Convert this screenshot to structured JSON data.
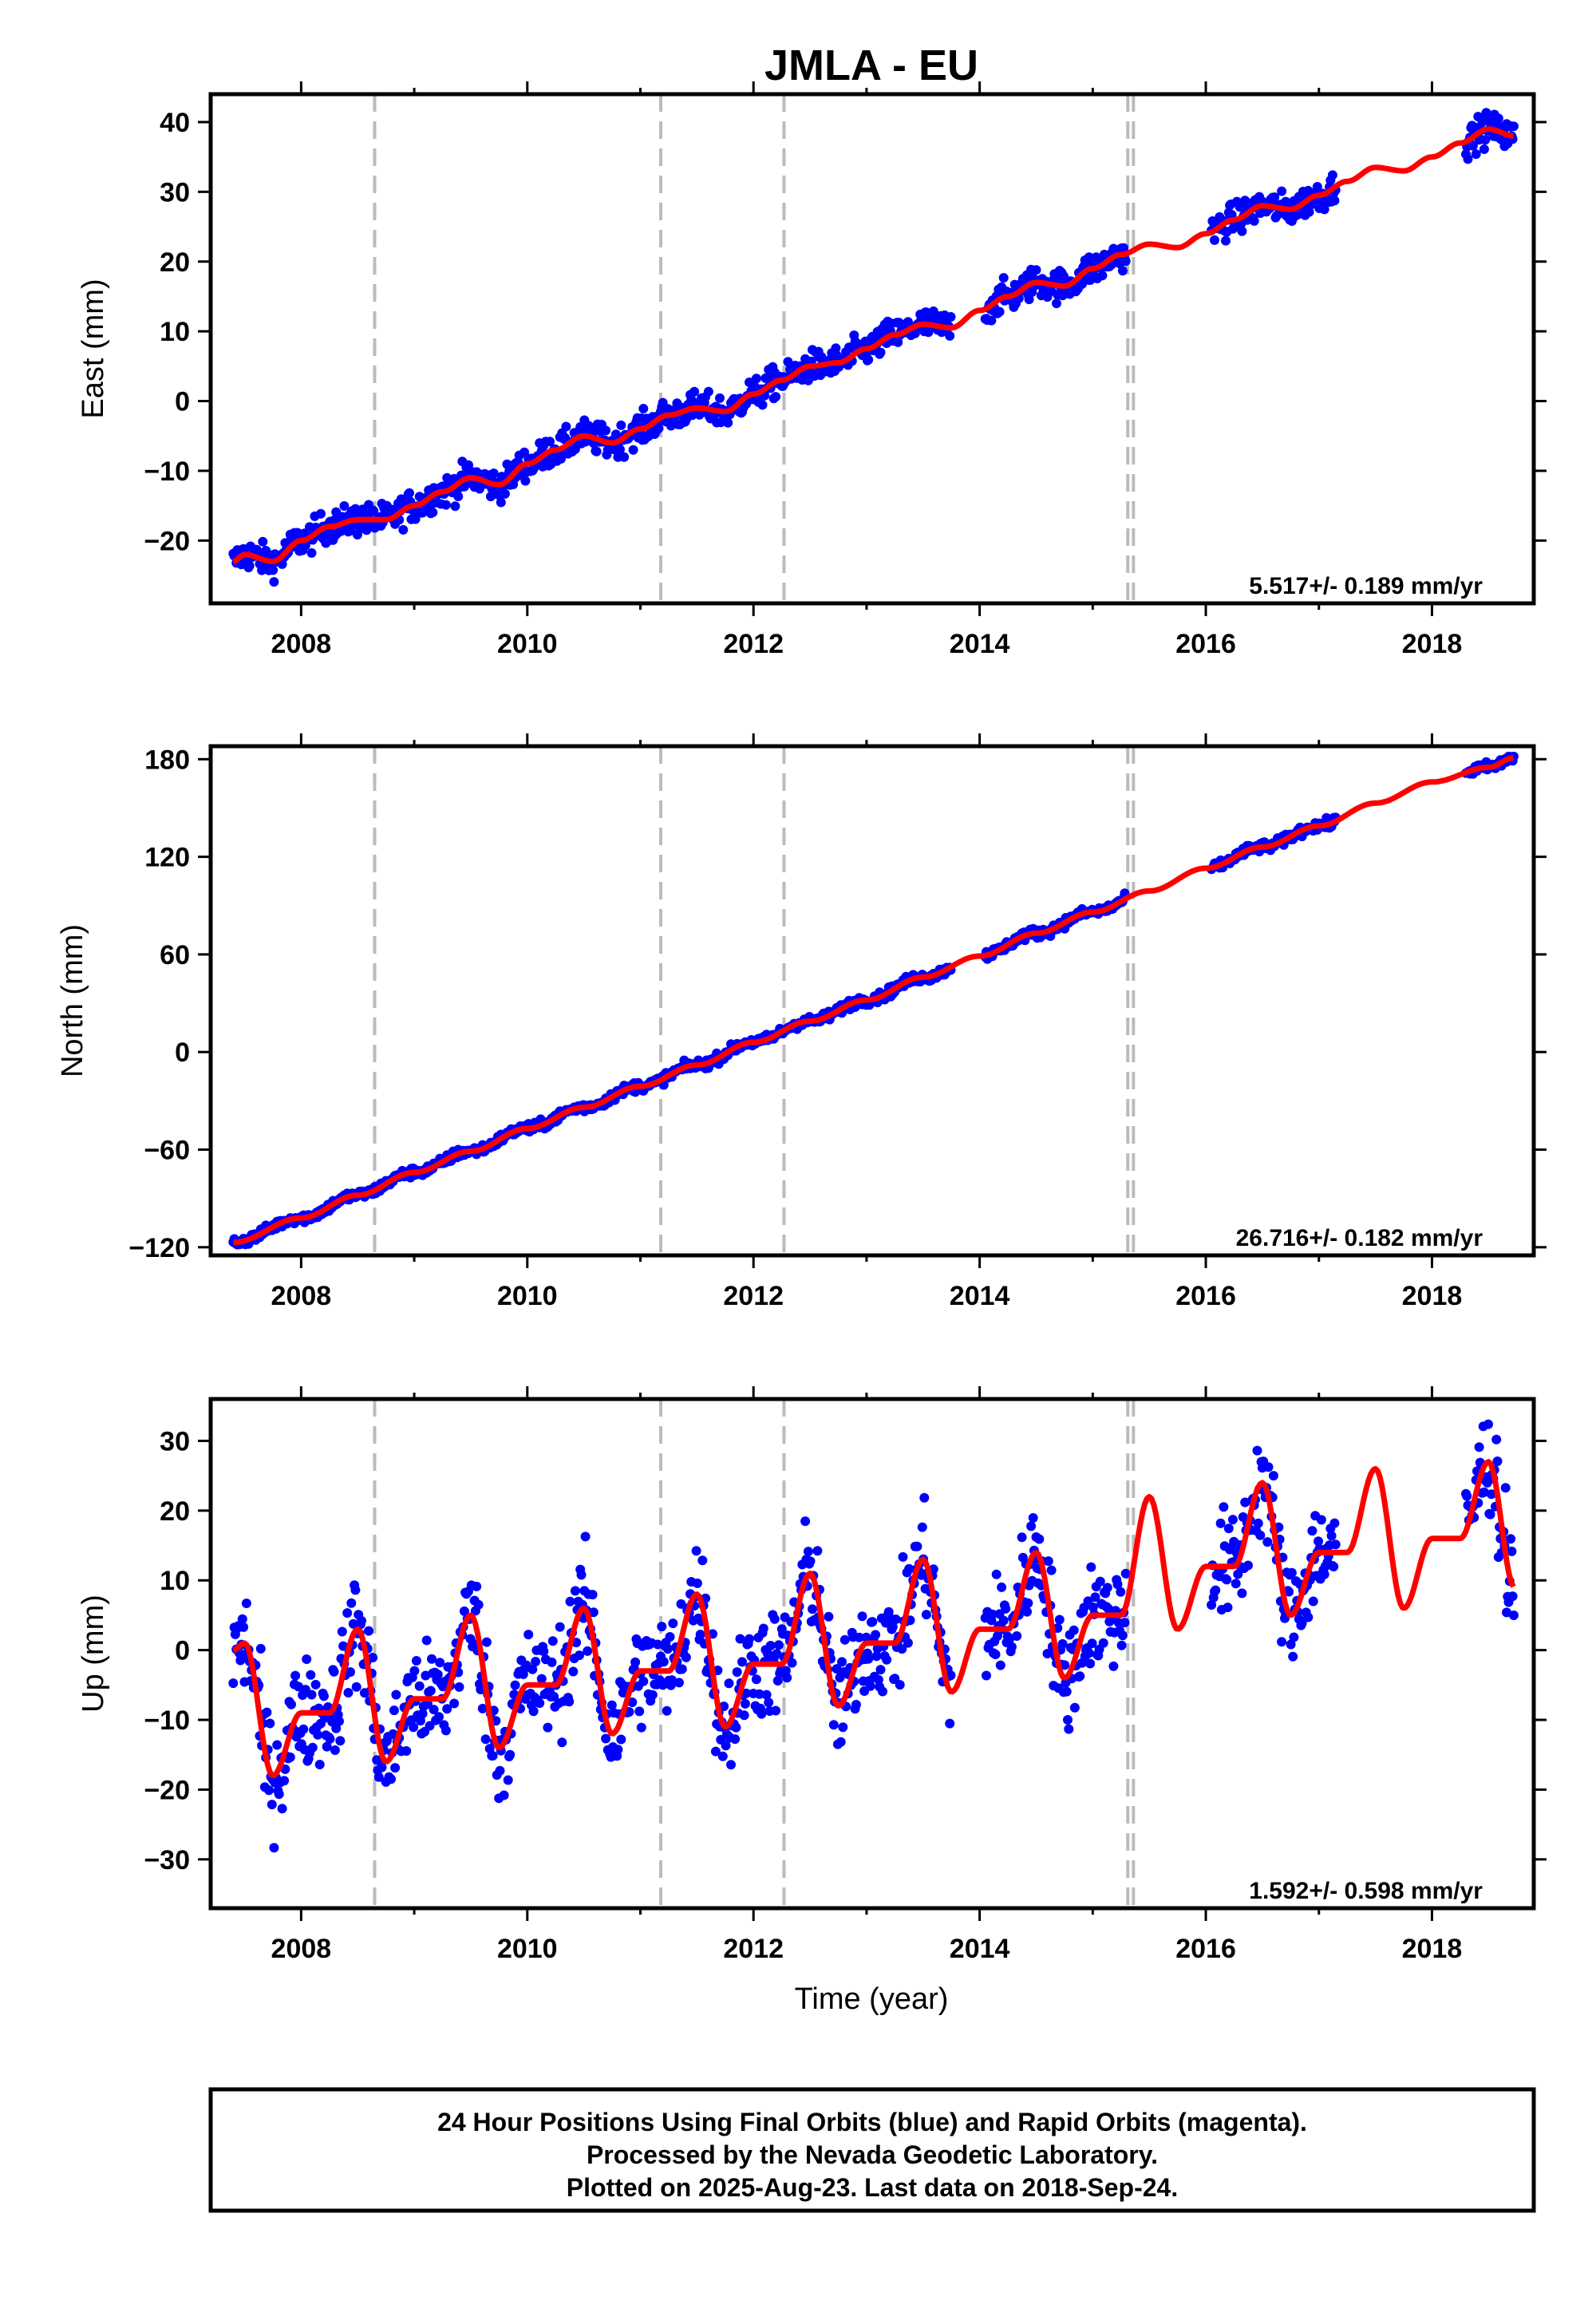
{
  "title": "JMLA - EU",
  "xlabel": "Time (year)",
  "xticks": [
    2008,
    2010,
    2012,
    2014,
    2016,
    2018
  ],
  "vlines": [
    2008.65,
    2011.18,
    2012.27,
    2015.31,
    2015.36
  ],
  "footer": {
    "line1": "24 Hour Positions Using Final Orbits (blue) and Rapid Orbits (magenta).",
    "line2": "Processed by the Nevada Geodetic Laboratory.",
    "line3": "Plotted on 2025-Aug-23. Last data on 2018-Sep-24."
  },
  "colors": {
    "points": "#0000ff",
    "model": "#ff0000",
    "breaks": "#bbbbbb"
  },
  "chart_data": [
    {
      "type": "scatter",
      "ylabel": "East (mm)",
      "rate": "5.517+/- 0.189 mm/yr",
      "xlim": [
        2007.2,
        2018.9
      ],
      "ylim": [
        -29,
        44
      ],
      "yticks": [
        -20,
        -10,
        0,
        10,
        20,
        30,
        40
      ],
      "observed_segments": [
        [
          2007.4,
          2013.75
        ],
        [
          2014.05,
          2015.3
        ],
        [
          2016.05,
          2017.15
        ],
        [
          2018.3,
          2018.73
        ]
      ],
      "model": {
        "x": [
          2007.4,
          2007.5,
          2007.75,
          2008.0,
          2008.25,
          2008.5,
          2008.75,
          2009.0,
          2009.25,
          2009.5,
          2009.75,
          2010.0,
          2010.25,
          2010.5,
          2010.75,
          2011.0,
          2011.25,
          2011.5,
          2011.75,
          2012.0,
          2012.25,
          2012.5,
          2012.75,
          2013.0,
          2013.25,
          2013.5,
          2013.75,
          2014.0,
          2014.25,
          2014.5,
          2014.75,
          2015.0,
          2015.25,
          2015.5,
          2015.75,
          2016.0,
          2016.25,
          2016.5,
          2016.75,
          2017.0,
          2017.25,
          2017.5,
          2017.75,
          2018.0,
          2018.25,
          2018.5,
          2018.73
        ],
        "y": [
          -23,
          -22,
          -23,
          -20,
          -18,
          -17,
          -17,
          -15,
          -13,
          -11,
          -12,
          -9,
          -7,
          -5,
          -6,
          -4,
          -2,
          -1,
          -1.5,
          1,
          3,
          5,
          5.5,
          7.5,
          9.5,
          11,
          10.5,
          13,
          15,
          17,
          16.5,
          19,
          21,
          22.5,
          22,
          24,
          26,
          28,
          27.5,
          29.5,
          31.5,
          33.5,
          33,
          35,
          37,
          39,
          38
        ]
      },
      "scatter_amp": 1.6
    },
    {
      "type": "scatter",
      "ylabel": "North (mm)",
      "rate": "26.716+/- 0.182 mm/yr",
      "xlim": [
        2007.2,
        2018.9
      ],
      "ylim": [
        -125,
        188
      ],
      "yticks": [
        -120,
        -60,
        0,
        60,
        120,
        180
      ],
      "observed_segments": [
        [
          2007.4,
          2013.75
        ],
        [
          2014.05,
          2015.3
        ],
        [
          2016.05,
          2017.15
        ],
        [
          2018.3,
          2018.73
        ]
      ],
      "model": {
        "x": [
          2007.4,
          2008.0,
          2008.5,
          2009.0,
          2009.5,
          2010.0,
          2010.5,
          2011.0,
          2011.5,
          2012.0,
          2012.5,
          2013.0,
          2013.5,
          2014.0,
          2014.5,
          2015.0,
          2015.5,
          2016.0,
          2016.5,
          2017.0,
          2017.5,
          2018.0,
          2018.5,
          2018.73
        ],
        "y": [
          -117,
          -102,
          -88,
          -74,
          -61,
          -47,
          -34,
          -21,
          -8,
          6,
          19,
          32,
          46,
          59,
          73,
          86,
          99,
          113,
          126,
          139,
          153,
          166,
          175,
          181
        ]
      },
      "scatter_amp": 2.2
    },
    {
      "type": "scatter",
      "ylabel": "Up (mm)",
      "rate": "1.592+/- 0.598 mm/yr",
      "xlim": [
        2007.2,
        2018.9
      ],
      "ylim": [
        -37,
        36
      ],
      "yticks": [
        -30,
        -20,
        -10,
        0,
        10,
        20,
        30
      ],
      "observed_segments": [
        [
          2007.4,
          2013.75
        ],
        [
          2014.05,
          2015.3
        ],
        [
          2016.05,
          2017.15
        ],
        [
          2018.3,
          2018.73
        ]
      ],
      "model": {
        "x": [
          2007.4,
          2007.5,
          2007.75,
          2008.0,
          2008.25,
          2008.5,
          2008.75,
          2009.0,
          2009.25,
          2009.5,
          2009.75,
          2010.0,
          2010.25,
          2010.5,
          2010.75,
          2011.0,
          2011.25,
          2011.5,
          2011.75,
          2012.0,
          2012.25,
          2012.5,
          2012.75,
          2013.0,
          2013.25,
          2013.5,
          2013.75,
          2014.0,
          2014.25,
          2014.5,
          2014.75,
          2015.0,
          2015.25,
          2015.5,
          2015.75,
          2016.0,
          2016.25,
          2016.5,
          2016.75,
          2017.0,
          2017.25,
          2017.5,
          2017.75,
          2018.0,
          2018.25,
          2018.5,
          2018.73
        ],
        "y": [
          0,
          1,
          -18,
          -9,
          -9,
          3,
          -16,
          -7,
          -7,
          5,
          -14,
          -5,
          -5,
          6,
          -12,
          -3,
          -3,
          8,
          -11,
          -2,
          -2,
          11,
          -8,
          1,
          1,
          13,
          -6,
          3,
          3,
          14,
          -4,
          5,
          5,
          22,
          3,
          12,
          12,
          24,
          5,
          14,
          14,
          26,
          6,
          16,
          16,
          27,
          9
        ]
      },
      "scatter_amp": 5.5
    }
  ]
}
